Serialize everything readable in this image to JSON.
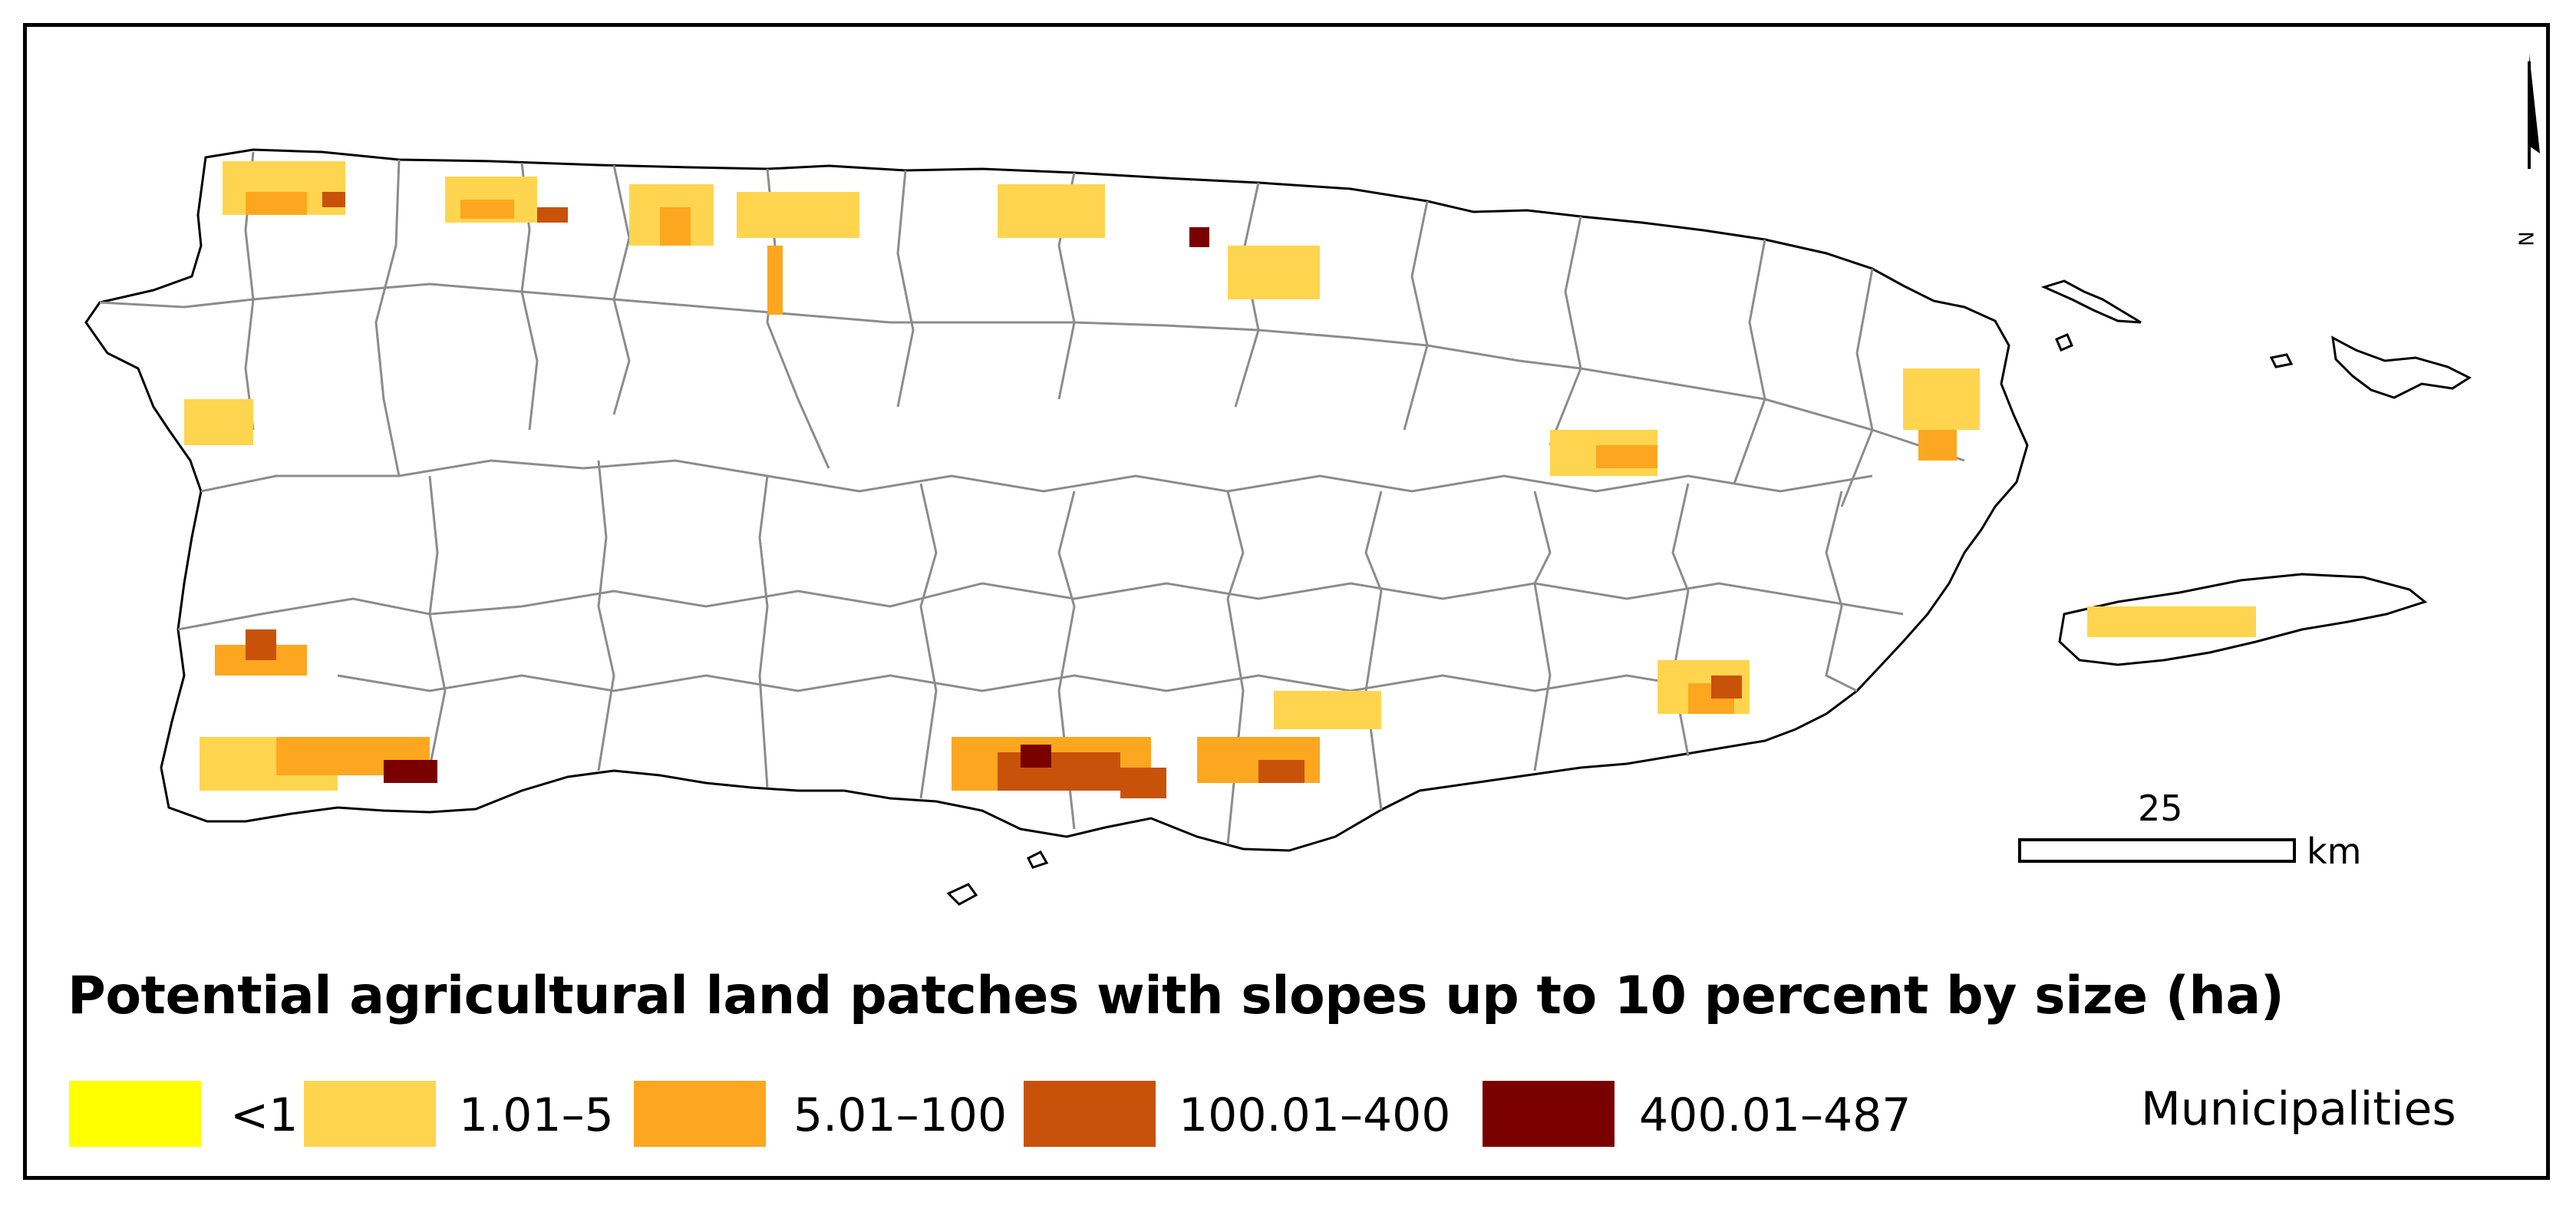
{
  "title": "Potential agricultural land patches with slopes up to 10 percent by size (ha)",
  "legend": [
    {
      "label": "<1",
      "color": "#ffff00"
    },
    {
      "label": "1.01–5",
      "color": "#ffd54f"
    },
    {
      "label": "5.01–100",
      "color": "#fca71f"
    },
    {
      "label": "100.01–400",
      "color": "#c8520a"
    },
    {
      "label": "400.01–487",
      "color": "#7a0000"
    }
  ],
  "municipalities_label": "Municipalities",
  "municipality_color": "#8c8c8c",
  "scale": {
    "value": "25",
    "unit": "km"
  },
  "north_label": "N",
  "land_fill": "#ffffff",
  "coast_color": "#000000"
}
